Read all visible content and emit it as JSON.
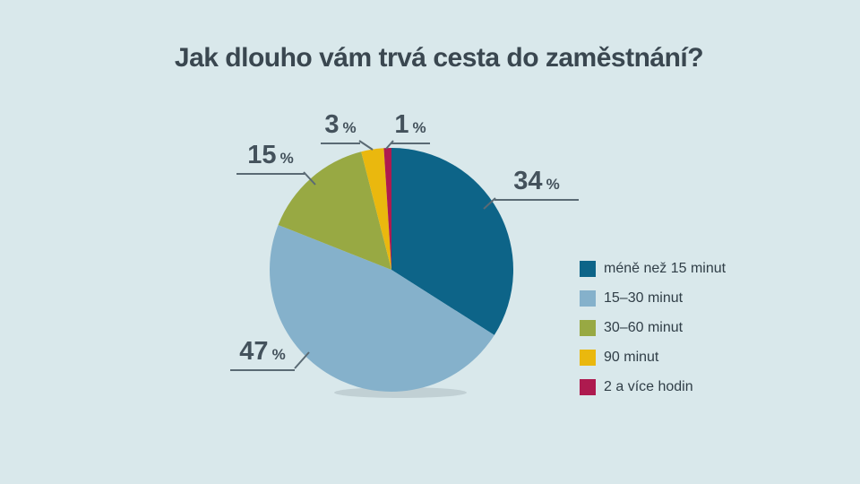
{
  "title": "Jak dlouho vám trvá cesta do zaměstnání?",
  "percent_symbol": "%",
  "chart_data": {
    "type": "pie",
    "title": "Jak dlouho vám trvá cesta do zaměstnání?",
    "categories": [
      "méně než 15 minut",
      "15–30 minut",
      "30–60 minut",
      "90 minut",
      "2 a více hodin"
    ],
    "values": [
      34,
      47,
      15,
      3,
      1
    ],
    "unit": "%",
    "colors": [
      "#0d6488",
      "#85b1cb",
      "#98a943",
      "#eab80e",
      "#ae1a4f"
    ],
    "start_angle_deg": 0,
    "direction": "clockwise",
    "legend_position": "right",
    "labels": [
      "34 %",
      "47 %",
      "15 %",
      "3 %",
      "1 %"
    ],
    "background_color": "#d9e8eb"
  }
}
